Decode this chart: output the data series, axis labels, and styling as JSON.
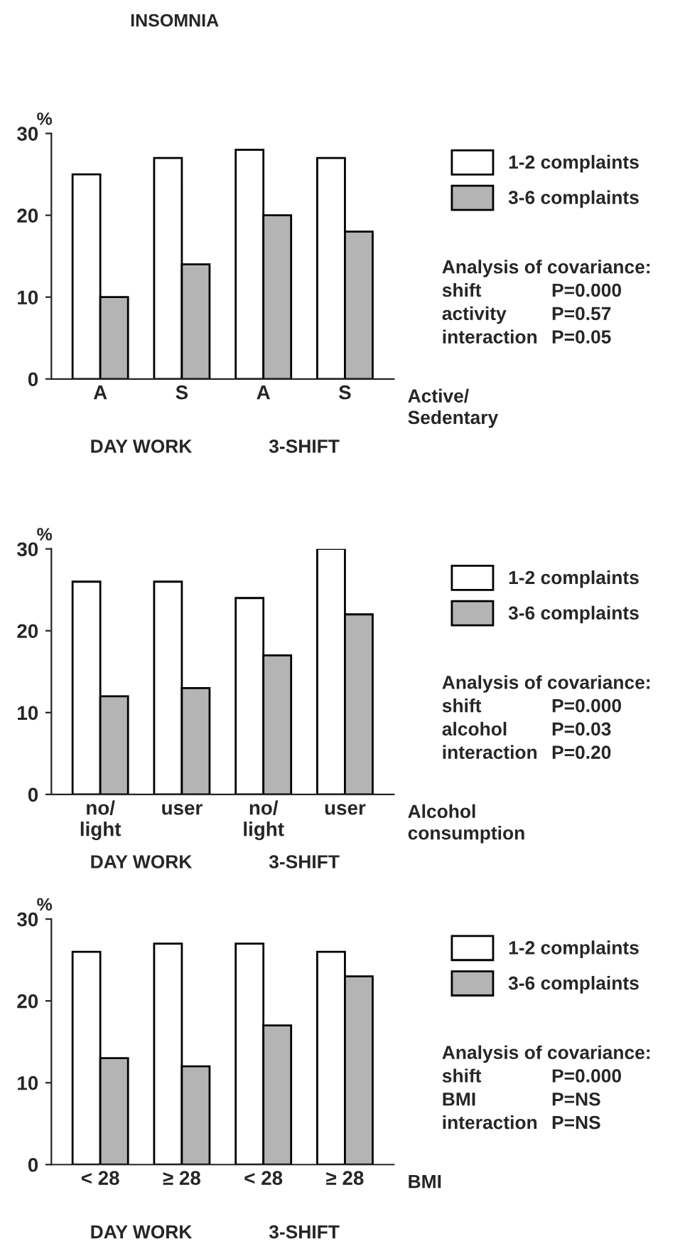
{
  "chart_data": [
    {
      "type": "bar",
      "title": "INSOMNIA",
      "categories": [
        "A",
        "S",
        "A",
        "S"
      ],
      "xlabel": "Active/\nSedentary",
      "ylabel": "%",
      "ylim": [
        0,
        30
      ],
      "yticks": [
        0,
        10,
        20,
        30
      ],
      "grid": false,
      "legend": "right",
      "series": [
        {
          "name": "1-2 complaints",
          "color": "#ffffff",
          "values": [
            25,
            27,
            28,
            27
          ]
        },
        {
          "name": "3-6 complaints",
          "color": "#b4b4b4",
          "values": [
            10,
            14,
            20,
            18
          ]
        }
      ],
      "annotations": [
        "DAY WORK",
        "3-SHIFT",
        "Analysis of covariance:",
        "shift P=0.000",
        "activity P=0.57",
        "interaction P=0.05"
      ]
    },
    {
      "type": "bar",
      "categories": [
        "no/\nlight",
        "user",
        "no/\nlight",
        "user"
      ],
      "xlabel": "Alcohol\nconsumption",
      "ylabel": "%",
      "ylim": [
        0,
        30
      ],
      "yticks": [
        0,
        10,
        20,
        30
      ],
      "grid": false,
      "legend": "right",
      "series": [
        {
          "name": "1-2 complaints",
          "color": "#ffffff",
          "values": [
            26,
            26,
            24,
            30
          ]
        },
        {
          "name": "3-6 complaints",
          "color": "#b4b4b4",
          "values": [
            12,
            13,
            17,
            22
          ]
        }
      ],
      "annotations": [
        "DAY WORK",
        "3-SHIFT",
        "Analysis of covariance:",
        "shift P=0.000",
        "alcohol P=0.03",
        "interaction P=0.20"
      ]
    },
    {
      "type": "bar",
      "categories": [
        "< 28",
        "≥ 28",
        "< 28",
        "≥ 28"
      ],
      "xlabel": "BMI",
      "ylabel": "%",
      "ylim": [
        0,
        30
      ],
      "yticks": [
        0,
        10,
        20,
        30
      ],
      "grid": false,
      "legend": "right",
      "series": [
        {
          "name": "1-2 complaints",
          "color": "#ffffff",
          "values": [
            26,
            27,
            27,
            26
          ]
        },
        {
          "name": "3-6 complaints",
          "color": "#b4b4b4",
          "values": [
            13,
            12,
            17,
            23
          ]
        }
      ],
      "annotations": [
        "DAY WORK",
        "3-SHIFT",
        "Analysis of covariance:",
        "shift P=0.000",
        "BMI P=NS",
        "interaction P=NS"
      ]
    }
  ]
}
